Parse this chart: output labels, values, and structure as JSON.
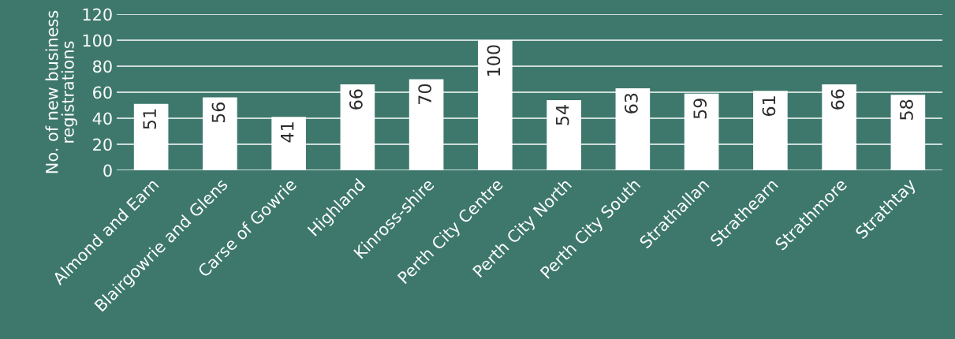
{
  "chart_data": {
    "type": "bar",
    "ylabel": "No. of new business\nregistrations",
    "categories": [
      "Almond and Earn",
      "Blairgowrie and Glens",
      "Carse of Gowrie",
      "Highland",
      "Kinross-shire",
      "Perth City Centre",
      "Perth City North",
      "Perth City South",
      "Strathallan",
      "Strathearn",
      "Strathmore",
      "Strathtay"
    ],
    "values": [
      51,
      56,
      41,
      66,
      70,
      100,
      54,
      63,
      59,
      61,
      66,
      58
    ],
    "color": "#ffffff",
    "ylim": [
      0,
      120
    ],
    "yticks": [
      0,
      20,
      40,
      60,
      80,
      100,
      120
    ],
    "grid": "y",
    "data_labels": true
  }
}
